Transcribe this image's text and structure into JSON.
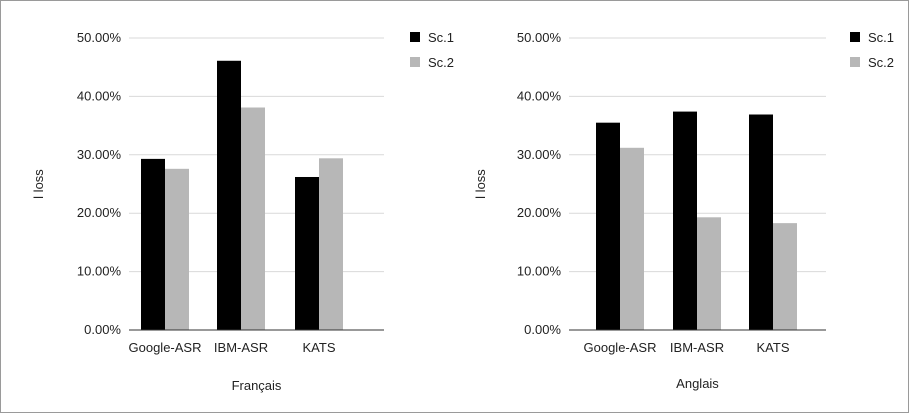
{
  "chart_data": [
    {
      "type": "bar",
      "xlabel": "Français",
      "ylabel": "l loss",
      "categories": [
        "Google-ASR",
        "IBM-ASR",
        "KATS"
      ],
      "series": [
        {
          "name": "Sc.1",
          "values": [
            0.293,
            0.461,
            0.262
          ]
        },
        {
          "name": "Sc.2",
          "values": [
            0.276,
            0.381,
            0.294
          ]
        }
      ],
      "ylim": [
        0,
        0.5
      ],
      "yticks": [
        "0.00%",
        "10.00%",
        "20.00%",
        "30.00%",
        "40.00%",
        "50.00%"
      ],
      "grid": true,
      "legend_position": "top-right"
    },
    {
      "type": "bar",
      "xlabel": "Anglais",
      "ylabel": "l loss",
      "categories": [
        "Google-ASR",
        "IBM-ASR",
        "KATS"
      ],
      "series": [
        {
          "name": "Sc.1",
          "values": [
            0.355,
            0.374,
            0.369
          ]
        },
        {
          "name": "Sc.2",
          "values": [
            0.312,
            0.193,
            0.183
          ]
        }
      ],
      "ylim": [
        0,
        0.5
      ],
      "yticks": [
        "0.00%",
        "10.00%",
        "20.00%",
        "30.00%",
        "40.00%",
        "50.00%"
      ],
      "grid": true,
      "legend_position": "top-right"
    }
  ],
  "colors": {
    "Sc.1": "#000000",
    "Sc.2": "#b7b7b7",
    "grid": "#d9d9d9",
    "axis": "#333333"
  }
}
